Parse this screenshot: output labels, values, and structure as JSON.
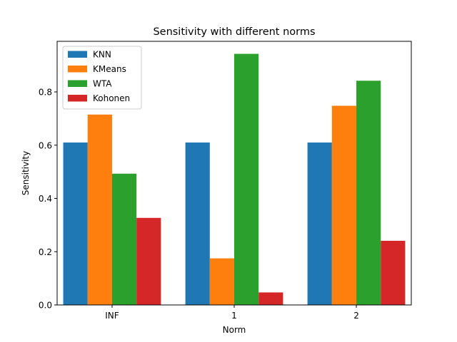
{
  "chart_data": {
    "type": "bar",
    "title": "Sensitivity with different norms",
    "xlabel": "Norm",
    "ylabel": "Sensitivity",
    "categories": [
      "INF",
      "1",
      "2"
    ],
    "ylim": [
      0,
      0.99
    ],
    "yticks": [
      0.0,
      0.2,
      0.4,
      0.6,
      0.8
    ],
    "ytick_labels": [
      "0.0",
      "0.2",
      "0.4",
      "0.6",
      "0.8"
    ],
    "grid": false,
    "legend_position": "top-left",
    "series": [
      {
        "name": "KNN",
        "color": "#1f77b4",
        "values": [
          0.61,
          0.61,
          0.61
        ]
      },
      {
        "name": "KMeans",
        "color": "#ff7f0e",
        "values": [
          0.715,
          0.175,
          0.748
        ]
      },
      {
        "name": "WTA",
        "color": "#2ca02c",
        "values": [
          0.493,
          0.943,
          0.842
        ]
      },
      {
        "name": "Kohonen",
        "color": "#d62728",
        "values": [
          0.327,
          0.047,
          0.241
        ]
      }
    ]
  }
}
